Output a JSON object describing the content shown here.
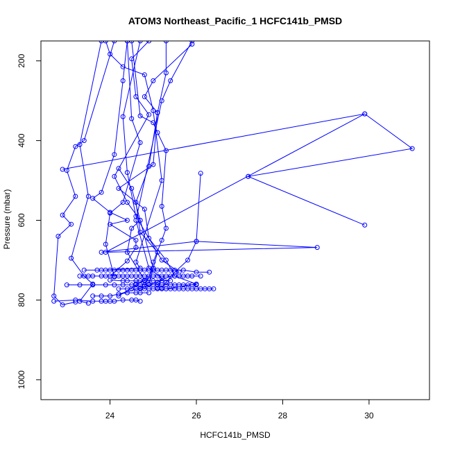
{
  "chart_data": {
    "type": "scatter",
    "title": "ATOM3 Northeast_Pacific_1 HCFC141b_PMSD",
    "xlabel": "HCFC141b_PMSD",
    "ylabel": "Pressure (mbar)",
    "xlim": [
      22.4,
      31.4
    ],
    "ylim": [
      1050,
      150
    ],
    "y_reversed": true,
    "x_ticks": [
      24,
      26,
      28,
      30
    ],
    "y_ticks": [
      200,
      400,
      600,
      800,
      1000
    ],
    "grid": false,
    "legend": "none",
    "color": "#0000ff",
    "series": [
      {
        "points": [
          [
            23.9,
            150
          ],
          [
            24.0,
            183
          ],
          [
            24.3,
            215
          ],
          [
            24.8,
            235
          ],
          [
            25.0,
            325
          ],
          [
            25.2,
            500
          ],
          [
            24.6,
            705
          ],
          [
            24.7,
            720
          ],
          [
            23.9,
            725
          ]
        ]
      },
      {
        "points": [
          [
            25.3,
            150
          ],
          [
            25.3,
            230
          ],
          [
            25.1,
            330
          ],
          [
            25.0,
            460
          ],
          [
            24.2,
            520
          ],
          [
            24.8,
            572
          ],
          [
            24.9,
            645
          ],
          [
            25.3,
            700
          ],
          [
            25.5,
            740
          ],
          [
            26.0,
            760
          ],
          [
            25.3,
            772
          ]
        ]
      },
      {
        "points": [
          [
            24.4,
            150
          ],
          [
            24.3,
            250
          ],
          [
            24.1,
            435
          ],
          [
            23.8,
            530
          ],
          [
            23.6,
            545
          ],
          [
            24.0,
            580
          ],
          [
            24.4,
            600
          ],
          [
            24.0,
            610
          ],
          [
            24.6,
            650
          ],
          [
            24.6,
            668
          ],
          [
            24.4,
            702
          ],
          [
            24.0,
            740
          ]
        ]
      },
      {
        "points": [
          [
            24.7,
            150
          ],
          [
            24.3,
            340
          ],
          [
            24.4,
            480
          ],
          [
            24.6,
            590
          ],
          [
            25.2,
            700
          ],
          [
            25.6,
            730
          ],
          [
            25.1,
            755
          ],
          [
            24.7,
            770
          ],
          [
            24.2,
            785
          ]
        ]
      },
      {
        "points": [
          [
            23.8,
            150
          ],
          [
            23.3,
            410
          ],
          [
            23.5,
            540
          ],
          [
            23.1,
            695
          ],
          [
            23.4,
            740
          ],
          [
            23.6,
            760
          ],
          [
            23.3,
            803
          ],
          [
            23.5,
            808
          ]
        ]
      },
      {
        "points": [
          [
            24.9,
            150
          ],
          [
            24.5,
            195
          ],
          [
            24.6,
            290
          ],
          [
            24.9,
            335
          ],
          [
            24.1,
            490
          ],
          [
            24.4,
            555
          ],
          [
            24.7,
            600
          ],
          [
            24.5,
            620
          ],
          [
            24.4,
            680
          ],
          [
            24.8,
            750
          ],
          [
            24.2,
            790
          ]
        ]
      },
      {
        "points": [
          [
            24.1,
            150
          ],
          [
            23.4,
            400
          ],
          [
            23.2,
            415
          ],
          [
            23.0,
            475
          ],
          [
            23.2,
            540
          ],
          [
            22.9,
            587
          ],
          [
            23.1,
            610
          ],
          [
            22.8,
            640
          ],
          [
            22.7,
            790
          ],
          [
            22.9,
            812
          ],
          [
            23.2,
            805
          ]
        ]
      },
      {
        "points": [
          [
            25.9,
            158
          ],
          [
            25.0,
            250
          ],
          [
            24.8,
            290
          ],
          [
            25.1,
            330
          ],
          [
            24.9,
            465
          ],
          [
            24.6,
            555
          ],
          [
            24.7,
            630
          ],
          [
            25.1,
            680
          ],
          [
            25.0,
            720
          ],
          [
            24.9,
            760
          ]
        ]
      },
      {
        "points": [
          [
            26.1,
            482
          ],
          [
            26.0,
            653
          ],
          [
            25.8,
            700
          ],
          [
            25.5,
            730
          ],
          [
            25.3,
            755
          ],
          [
            25.2,
            770
          ]
        ]
      },
      {
        "points": [
          [
            24.5,
            150
          ],
          [
            24.7,
            338
          ],
          [
            25.0,
            355
          ],
          [
            25.1,
            380
          ],
          [
            25.3,
            425
          ],
          [
            25.2,
            565
          ],
          [
            25.3,
            620
          ],
          [
            25.2,
            650
          ],
          [
            25.0,
            705
          ],
          [
            24.9,
            745
          ],
          [
            24.6,
            760
          ]
        ]
      },
      {
        "points": [
          [
            27.2,
            490
          ],
          [
            29.9,
            612
          ],
          [
            27.2,
            490
          ],
          [
            31.0,
            420
          ],
          [
            29.9,
            333
          ],
          [
            22.9,
            472
          ]
        ]
      },
      {
        "points": [
          [
            29.9,
            333
          ],
          [
            23.9,
            680
          ],
          [
            28.8,
            668
          ],
          [
            26.0,
            653
          ],
          [
            23.8,
            680
          ]
        ]
      },
      {
        "points": [
          [
            25.9,
            150
          ],
          [
            25.4,
            250
          ],
          [
            25.2,
            300
          ],
          [
            24.6,
            600
          ],
          [
            24.9,
            720
          ],
          [
            25.2,
            745
          ],
          [
            25.1,
            770
          ]
        ]
      },
      {
        "points": [
          [
            24.2,
            470
          ],
          [
            24.5,
            520
          ],
          [
            24.7,
            600
          ],
          [
            25.0,
            720
          ],
          [
            24.8,
            765
          ]
        ]
      },
      {
        "points": [
          [
            24.4,
            150
          ],
          [
            24.5,
            345
          ],
          [
            24.7,
            405
          ],
          [
            24.3,
            555
          ],
          [
            24.0,
            582
          ],
          [
            23.9,
            660
          ],
          [
            24.1,
            742
          ]
        ]
      },
      {
        "points": [
          [
            23.3,
            740
          ],
          [
            23.5,
            740
          ],
          [
            23.6,
            740
          ],
          [
            23.8,
            740
          ],
          [
            23.9,
            740
          ],
          [
            24.0,
            740
          ],
          [
            24.1,
            740
          ],
          [
            24.2,
            740
          ],
          [
            24.3,
            740
          ],
          [
            24.4,
            740
          ],
          [
            24.5,
            740
          ],
          [
            24.6,
            740
          ],
          [
            24.7,
            740
          ],
          [
            24.8,
            740
          ],
          [
            24.9,
            740
          ],
          [
            25.0,
            740
          ],
          [
            25.1,
            740
          ],
          [
            25.2,
            740
          ],
          [
            25.3,
            740
          ],
          [
            25.4,
            740
          ],
          [
            25.5,
            740
          ],
          [
            25.6,
            740
          ],
          [
            25.7,
            740
          ],
          [
            25.8,
            740
          ],
          [
            25.9,
            740
          ],
          [
            26.1,
            740
          ]
        ]
      },
      {
        "points": [
          [
            23.4,
            725
          ],
          [
            23.7,
            725
          ],
          [
            23.8,
            725
          ],
          [
            24.0,
            725
          ],
          [
            24.1,
            725
          ],
          [
            24.2,
            725
          ],
          [
            24.3,
            725
          ],
          [
            24.4,
            725
          ],
          [
            24.5,
            725
          ],
          [
            24.6,
            725
          ],
          [
            24.7,
            725
          ],
          [
            24.8,
            725
          ],
          [
            24.9,
            725
          ],
          [
            25.0,
            725
          ],
          [
            25.1,
            725
          ],
          [
            25.2,
            725
          ],
          [
            25.3,
            725
          ],
          [
            25.4,
            725
          ],
          [
            25.5,
            725
          ],
          [
            25.7,
            725
          ],
          [
            26.0,
            730
          ],
          [
            26.3,
            730
          ]
        ]
      },
      {
        "points": [
          [
            23.0,
            762
          ],
          [
            23.3,
            762
          ],
          [
            23.6,
            762
          ],
          [
            23.9,
            762
          ],
          [
            24.1,
            762
          ],
          [
            24.3,
            762
          ],
          [
            24.5,
            762
          ],
          [
            24.6,
            762
          ],
          [
            24.7,
            762
          ],
          [
            24.8,
            762
          ],
          [
            24.9,
            762
          ],
          [
            25.0,
            762
          ],
          [
            25.1,
            762
          ],
          [
            25.2,
            762
          ],
          [
            25.3,
            762
          ],
          [
            25.4,
            762
          ],
          [
            25.5,
            762
          ],
          [
            25.6,
            762
          ],
          [
            25.7,
            762
          ],
          [
            25.8,
            762
          ],
          [
            25.9,
            762
          ],
          [
            26.0,
            762
          ]
        ]
      },
      {
        "points": [
          [
            24.2,
            772
          ],
          [
            24.4,
            772
          ],
          [
            24.5,
            772
          ],
          [
            24.6,
            772
          ],
          [
            24.7,
            772
          ],
          [
            24.8,
            772
          ],
          [
            24.9,
            772
          ],
          [
            25.0,
            772
          ],
          [
            25.1,
            772
          ],
          [
            25.2,
            772
          ],
          [
            25.3,
            772
          ],
          [
            25.4,
            772
          ],
          [
            25.5,
            772
          ],
          [
            25.6,
            772
          ],
          [
            25.7,
            772
          ],
          [
            25.8,
            772
          ],
          [
            25.9,
            772
          ],
          [
            26.0,
            772
          ],
          [
            26.1,
            772
          ],
          [
            26.2,
            772
          ],
          [
            26.3,
            772
          ],
          [
            26.4,
            772
          ]
        ]
      },
      {
        "points": [
          [
            24.0,
            750
          ],
          [
            24.3,
            752
          ],
          [
            24.4,
            752
          ],
          [
            24.6,
            752
          ],
          [
            24.7,
            752
          ],
          [
            24.8,
            752
          ],
          [
            25.0,
            752
          ],
          [
            25.2,
            752
          ],
          [
            25.4,
            752
          ]
        ]
      },
      {
        "points": [
          [
            22.7,
            803
          ],
          [
            23.2,
            800
          ],
          [
            23.6,
            803
          ],
          [
            23.8,
            803
          ],
          [
            23.9,
            803
          ],
          [
            24.0,
            803
          ],
          [
            24.1,
            803
          ],
          [
            24.3,
            800
          ],
          [
            24.5,
            800
          ],
          [
            24.6,
            800
          ],
          [
            24.7,
            803
          ]
        ]
      },
      {
        "points": [
          [
            23.6,
            790
          ],
          [
            23.8,
            790
          ],
          [
            24.0,
            790
          ],
          [
            24.2,
            785
          ],
          [
            24.4,
            782
          ],
          [
            24.6,
            782
          ],
          [
            24.7,
            782
          ],
          [
            24.9,
            782
          ]
        ]
      }
    ]
  }
}
